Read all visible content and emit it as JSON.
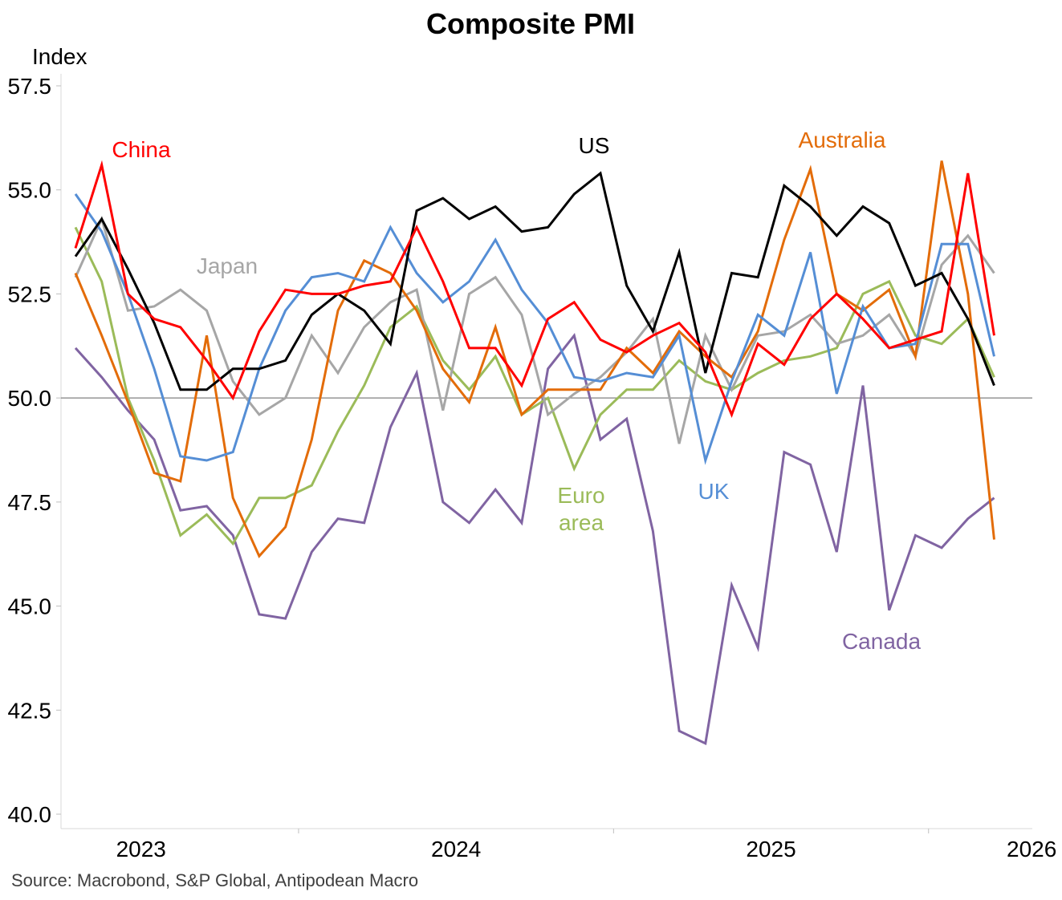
{
  "chart_data": {
    "type": "line",
    "title": "Composite PMI",
    "ylabel": "Index",
    "xlabel": "",
    "ylim": [
      40,
      57.5
    ],
    "yticks": [
      "40.0",
      "42.5",
      "45.0",
      "47.5",
      "50.0",
      "52.5",
      "55.0",
      "57.5"
    ],
    "xticks": [
      "2023",
      "2024",
      "2025",
      "2026"
    ],
    "reference_line": 50,
    "start_month": "2022-10",
    "source": "Source: Macrobond, S&P Global, Antipodean Macro",
    "series": [
      {
        "name": "Canada",
        "label": "Canada",
        "color": "#8064a2",
        "values": [
          51.2,
          50.5,
          49.7,
          49.0,
          47.3,
          47.4,
          46.7,
          44.8,
          44.7,
          46.3,
          47.1,
          47.0,
          49.3,
          50.6,
          47.5,
          47.0,
          47.8,
          47.0,
          50.7,
          51.5,
          49.0,
          49.5,
          46.8,
          42.0,
          41.7,
          45.5,
          44.0,
          48.7,
          48.4,
          46.3,
          50.3,
          44.9,
          46.7,
          46.4,
          47.1,
          47.6
        ]
      },
      {
        "name": "Euro area",
        "label": "Euro area",
        "color": "#9bbb59",
        "values": [
          54.1,
          52.8,
          50.0,
          48.5,
          46.7,
          47.2,
          46.5,
          47.6,
          47.6,
          47.9,
          49.2,
          50.3,
          51.7,
          52.2,
          50.9,
          50.2,
          51.0,
          49.6,
          50.0,
          48.3,
          49.6,
          50.2,
          50.2,
          50.9,
          50.4,
          50.2,
          50.6,
          50.9,
          51.0,
          51.2,
          52.5,
          52.8,
          51.5,
          51.3,
          51.9,
          50.5
        ]
      },
      {
        "name": "Japan",
        "label": "Japan",
        "color": "#a6a6a6",
        "values": [
          52.9,
          54.3,
          52.1,
          52.2,
          52.6,
          52.1,
          50.4,
          49.6,
          50.0,
          51.5,
          50.6,
          51.7,
          52.3,
          52.6,
          49.7,
          52.5,
          52.9,
          52.0,
          49.6,
          50.1,
          50.5,
          51.1,
          51.9,
          48.9,
          51.5,
          50.2,
          51.5,
          51.6,
          52.0,
          51.3,
          51.5,
          52.0,
          51.0,
          53.2,
          53.9,
          53.0
        ]
      },
      {
        "name": "Australia",
        "label": "Australia",
        "color": "#e36c09",
        "values": [
          53.0,
          51.5,
          49.9,
          48.2,
          48.0,
          51.5,
          47.6,
          46.2,
          46.9,
          49.0,
          52.1,
          53.3,
          53.0,
          52.1,
          50.7,
          49.9,
          51.7,
          49.6,
          50.2,
          50.2,
          50.2,
          51.2,
          50.6,
          51.6,
          51.0,
          50.5,
          51.6,
          53.8,
          55.5,
          52.5,
          52.1,
          52.6,
          51.0,
          55.7,
          52.5,
          46.6
        ]
      },
      {
        "name": "UK",
        "label": "UK",
        "color": "#558ed5",
        "values": [
          54.9,
          54.0,
          52.5,
          50.7,
          48.6,
          48.5,
          48.7,
          50.7,
          52.1,
          52.9,
          53.0,
          52.8,
          54.1,
          53.0,
          52.3,
          52.8,
          53.8,
          52.6,
          51.8,
          50.5,
          50.4,
          50.6,
          50.5,
          51.5,
          48.5,
          50.4,
          52.0,
          51.5,
          53.5,
          50.1,
          52.2,
          51.2,
          51.3,
          53.7,
          53.7,
          51.0
        ]
      },
      {
        "name": "US",
        "label": "US",
        "color": "#000000",
        "values": [
          53.4,
          54.3,
          53.1,
          51.8,
          50.2,
          50.2,
          50.7,
          50.7,
          50.9,
          52.0,
          52.5,
          52.1,
          51.3,
          54.5,
          54.8,
          54.3,
          54.6,
          54.0,
          54.1,
          54.9,
          55.4,
          52.7,
          51.6,
          53.5,
          50.6,
          53.0,
          52.9,
          55.1,
          54.6,
          53.9,
          54.6,
          54.2,
          52.7,
          53.0,
          51.9,
          50.3
        ]
      },
      {
        "name": "China",
        "label": "China",
        "color": "#ff0000",
        "values": [
          53.6,
          55.6,
          52.5,
          51.9,
          51.7,
          50.9,
          50.0,
          51.6,
          52.6,
          52.5,
          52.5,
          52.7,
          52.8,
          54.1,
          52.8,
          51.2,
          51.2,
          50.3,
          51.9,
          52.3,
          51.4,
          51.1,
          51.5,
          51.8,
          51.1,
          49.6,
          51.3,
          50.8,
          51.9,
          52.5,
          51.9,
          51.2,
          51.4,
          51.6,
          55.4,
          51.5
        ]
      }
    ]
  }
}
